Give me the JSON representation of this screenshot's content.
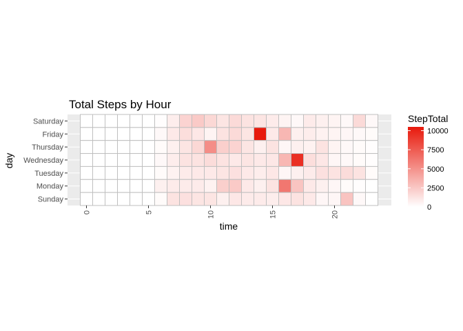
{
  "chart_data": {
    "type": "heatmap",
    "title": "Total Steps by Hour",
    "xlabel": "time",
    "ylabel": "day",
    "xlim": [
      -0.5,
      23.5
    ],
    "x_ticks": [
      0,
      5,
      10,
      15,
      20
    ],
    "x_tick_labels": [
      "0",
      "5",
      "10",
      "15",
      "20"
    ],
    "days": [
      "Saturday",
      "Friday",
      "Thursday",
      "Wednesday",
      "Tuesday",
      "Monday",
      "Sunday"
    ],
    "hours": [
      0,
      1,
      2,
      3,
      4,
      5,
      6,
      7,
      8,
      9,
      10,
      11,
      12,
      13,
      14,
      15,
      16,
      17,
      18,
      19,
      20,
      21,
      22,
      23
    ],
    "values": [
      [
        0,
        0,
        0,
        0,
        0,
        0,
        100,
        800,
        2000,
        2400,
        1800,
        1200,
        1700,
        1300,
        1200,
        900,
        500,
        300,
        900,
        700,
        500,
        300,
        1700,
        300
      ],
      [
        0,
        0,
        0,
        0,
        0,
        0,
        300,
        1000,
        1500,
        1100,
        500,
        1300,
        1700,
        1200,
        10500,
        1000,
        3300,
        700,
        800,
        600,
        500,
        400,
        300,
        200
      ],
      [
        0,
        0,
        0,
        0,
        0,
        0,
        200,
        700,
        1200,
        1800,
        5200,
        2200,
        2000,
        1200,
        700,
        1300,
        400,
        700,
        600,
        1300,
        500,
        300,
        200,
        100
      ],
      [
        0,
        0,
        0,
        0,
        0,
        0,
        300,
        800,
        1300,
        1300,
        1600,
        1300,
        1000,
        1200,
        1000,
        1100,
        3300,
        9500,
        1500,
        1100,
        400,
        300,
        200,
        100
      ],
      [
        0,
        0,
        0,
        0,
        0,
        0,
        200,
        600,
        900,
        1000,
        1000,
        1200,
        1400,
        1000,
        800,
        1100,
        400,
        700,
        900,
        1400,
        1300,
        1600,
        1300,
        200
      ],
      [
        0,
        0,
        0,
        0,
        0,
        0,
        700,
        900,
        900,
        900,
        600,
        2200,
        2400,
        1000,
        700,
        1300,
        6200,
        2700,
        1000,
        700,
        400,
        200,
        100,
        0
      ],
      [
        0,
        0,
        0,
        0,
        0,
        0,
        200,
        1300,
        1400,
        1200,
        1200,
        700,
        1100,
        900,
        900,
        800,
        1100,
        1300,
        1000,
        400,
        400,
        2700,
        300,
        0
      ]
    ],
    "legend": {
      "title": "StepTotal",
      "ticks": [
        0,
        2500,
        5000,
        7500,
        10000
      ],
      "tick_labels": [
        "0",
        "2500",
        "5000",
        "7500",
        "10000"
      ],
      "range": [
        0,
        10500
      ]
    },
    "colors": {
      "low": "#ffffff",
      "high": "#e8190c",
      "panel_bg": "#ebebeb",
      "grid": "#ffffff",
      "tile_border": "#bfbfbf"
    },
    "grid": true,
    "legend_position": "right"
  }
}
